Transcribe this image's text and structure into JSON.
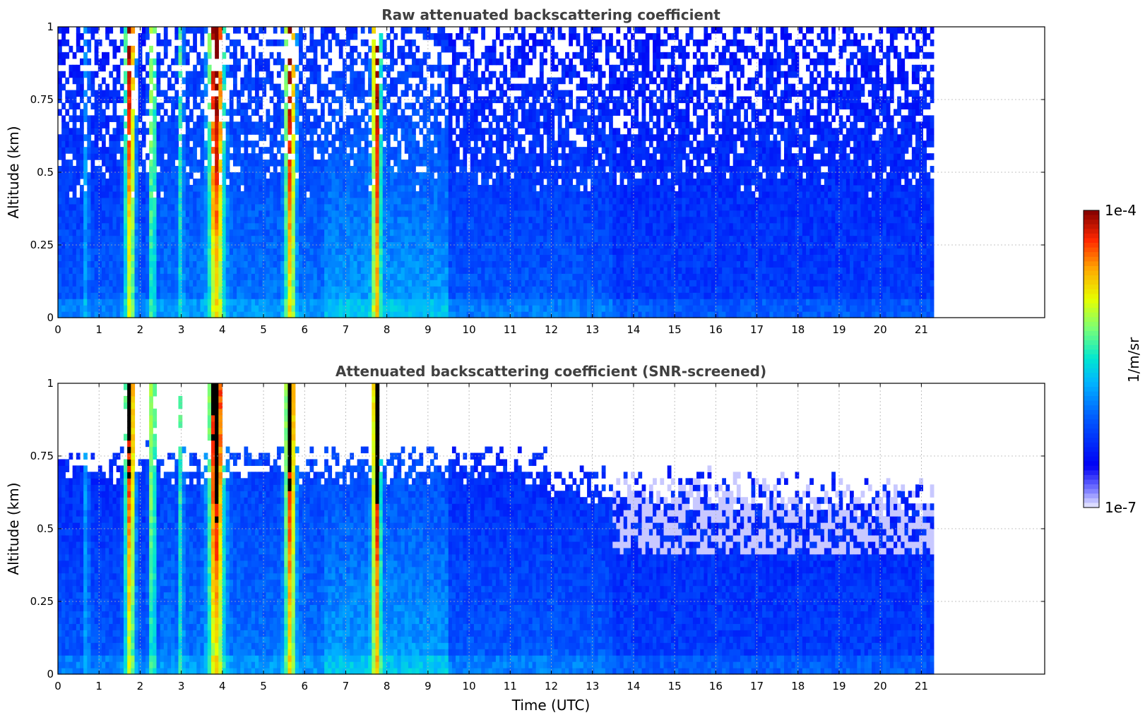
{
  "chart_data": [
    {
      "type": "heatmap",
      "title": "Raw attenuated backscattering coefficient",
      "xlabel": "",
      "ylabel": "Altitude (km)",
      "xlim": [
        0,
        24
      ],
      "ylim": [
        0,
        1
      ],
      "data_extent_x": [
        0,
        21.3
      ],
      "x_ticks": [
        0,
        1,
        2,
        3,
        4,
        5,
        6,
        7,
        8,
        9,
        10,
        11,
        12,
        13,
        14,
        15,
        16,
        17,
        18,
        19,
        20,
        21
      ],
      "y_ticks": [
        0,
        0.25,
        0.5,
        0.75,
        1
      ],
      "y_tick_labels": [
        "0",
        "0.25",
        "0.5",
        "0.75",
        "1"
      ],
      "grid": true,
      "screened": false,
      "plumes_utc": [
        {
          "t": 0.7,
          "w": 0.05,
          "top": 1.0,
          "strength": 0.35
        },
        {
          "t": 1.75,
          "w": 0.12,
          "top": 1.0,
          "strength": 0.95
        },
        {
          "t": 2.3,
          "w": 0.08,
          "top": 1.0,
          "strength": 0.65
        },
        {
          "t": 3.0,
          "w": 0.05,
          "top": 1.0,
          "strength": 0.5
        },
        {
          "t": 3.85,
          "w": 0.18,
          "top": 1.0,
          "strength": 1.0
        },
        {
          "t": 5.65,
          "w": 0.12,
          "top": 1.0,
          "strength": 0.95
        },
        {
          "t": 7.75,
          "w": 0.1,
          "top": 1.0,
          "strength": 0.95
        }
      ]
    },
    {
      "type": "heatmap",
      "title": "Attenuated backscattering coefficient (SNR-screened)",
      "xlabel": "Time (UTC)",
      "ylabel": "Altitude (km)",
      "xlim": [
        0,
        24
      ],
      "ylim": [
        0,
        1
      ],
      "data_extent_x": [
        0,
        21.3
      ],
      "x_ticks": [
        0,
        1,
        2,
        3,
        4,
        5,
        6,
        7,
        8,
        9,
        10,
        11,
        12,
        13,
        14,
        15,
        16,
        17,
        18,
        19,
        20,
        21
      ],
      "y_ticks": [
        0,
        0.25,
        0.5,
        0.75,
        1
      ],
      "y_tick_labels": [
        "0",
        "0.25",
        "0.5",
        "0.75",
        "1"
      ],
      "grid": true,
      "screened": true,
      "plumes_utc": [
        {
          "t": 0.7,
          "w": 0.05,
          "top": 1.0,
          "strength": 0.35
        },
        {
          "t": 1.75,
          "w": 0.12,
          "top": 1.0,
          "strength": 0.95
        },
        {
          "t": 2.3,
          "w": 0.08,
          "top": 1.0,
          "strength": 0.65
        },
        {
          "t": 3.0,
          "w": 0.05,
          "top": 1.0,
          "strength": 0.5
        },
        {
          "t": 3.85,
          "w": 0.18,
          "top": 1.0,
          "strength": 1.0
        },
        {
          "t": 5.65,
          "w": 0.12,
          "top": 1.0,
          "strength": 0.95
        },
        {
          "t": 7.75,
          "w": 0.1,
          "top": 1.0,
          "strength": 0.95
        }
      ]
    }
  ],
  "colorbar": {
    "max_label": "1e-4",
    "min_label": "1e-7",
    "unit_label": "1/m/sr",
    "colormap": "jet",
    "scale": "log",
    "range": [
      1e-07,
      0.0001
    ]
  }
}
